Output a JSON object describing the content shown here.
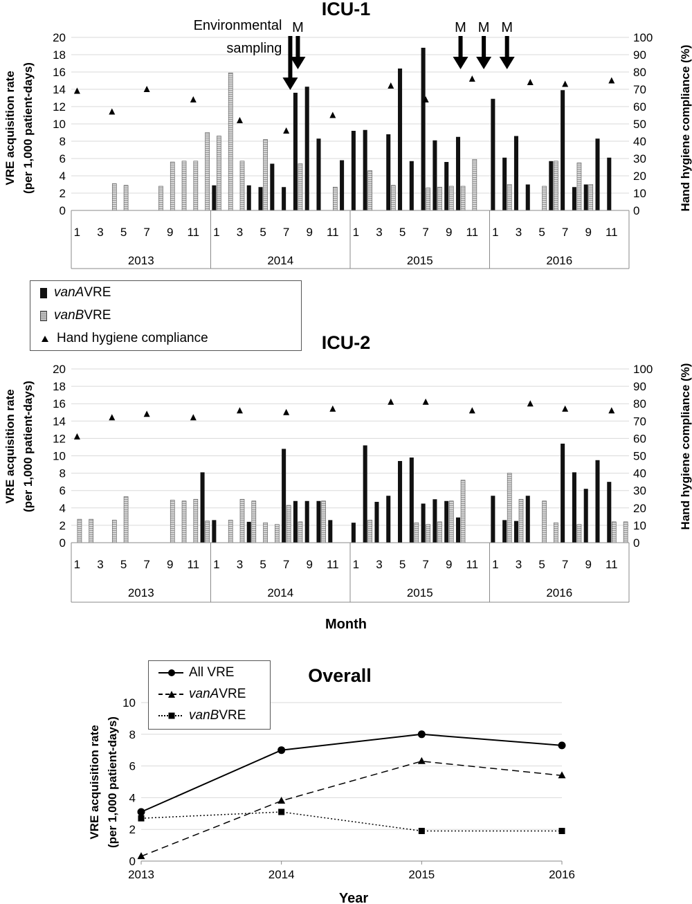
{
  "chart_data": [
    {
      "type": "bar",
      "title": "ICU-1",
      "ylabel_left": [
        "VRE acquisition rate",
        "(per 1,000 patient-days)"
      ],
      "ylabel_right": "Hand hygiene compliance (%)",
      "ylim_left": [
        0,
        20
      ],
      "yticks_left": [
        0,
        2,
        4,
        6,
        8,
        10,
        12,
        14,
        16,
        18,
        20
      ],
      "ylim_right": [
        0,
        100
      ],
      "yticks_right": [
        0,
        10,
        20,
        30,
        40,
        50,
        60,
        70,
        80,
        90,
        100
      ],
      "years": [
        "2013",
        "2014",
        "2015",
        "2016"
      ],
      "month_tick_labels": [
        "1",
        "3",
        "5",
        "7",
        "9",
        "11"
      ],
      "series": [
        {
          "name": "vanA VRE",
          "values": [
            0,
            0,
            0,
            0,
            0,
            0,
            0,
            0,
            0,
            0,
            0,
            0,
            2.9,
            0,
            0,
            2.9,
            2.7,
            5.4,
            2.7,
            13.6,
            14.3,
            8.3,
            0,
            5.8,
            9.2,
            9.3,
            0,
            8.8,
            16.4,
            5.7,
            18.8,
            8.1,
            5.6,
            8.5,
            0,
            0,
            12.9,
            6.1,
            8.6,
            3.0,
            0,
            5.7,
            13.9,
            2.7,
            3.0,
            8.3,
            6.1,
            0
          ]
        },
        {
          "name": "vanB VRE",
          "values": [
            0,
            0,
            0,
            3.1,
            2.9,
            0,
            0,
            2.8,
            5.6,
            5.7,
            5.7,
            9.0,
            8.6,
            15.9,
            5.7,
            0,
            8.2,
            0,
            0,
            5.4,
            0,
            0,
            2.7,
            0,
            0,
            4.6,
            0,
            2.9,
            0,
            0,
            2.6,
            2.7,
            2.8,
            2.8,
            5.9,
            0,
            0,
            3.0,
            0,
            0,
            2.8,
            5.7,
            0,
            5.5,
            3.0,
            0,
            0,
            0
          ]
        },
        {
          "name": "Hand hygiene compliance",
          "values": [
            69,
            null,
            null,
            57,
            null,
            null,
            70,
            null,
            null,
            null,
            64,
            null,
            null,
            null,
            52,
            null,
            null,
            null,
            46,
            null,
            null,
            null,
            55,
            null,
            null,
            null,
            null,
            72,
            null,
            null,
            64,
            null,
            null,
            null,
            76,
            null,
            null,
            null,
            null,
            74,
            null,
            null,
            73,
            null,
            null,
            null,
            75,
            null
          ]
        }
      ],
      "annotations": [
        {
          "text": "Environmental",
          "text2": "sampling",
          "month_index": 19
        },
        {
          "text": "M",
          "month_index": 19
        },
        {
          "text": "M",
          "month_index": 33
        },
        {
          "text": "M",
          "month_index": 35
        },
        {
          "text": "M",
          "month_index": 37
        }
      ]
    },
    {
      "type": "bar",
      "title": "ICU-2",
      "ylabel_left": [
        "VRE acquisition rate",
        "(per 1,000 patient-days)"
      ],
      "ylabel_right": "Hand hygiene compliance (%)",
      "xlabel": "Month",
      "ylim_left": [
        0,
        20
      ],
      "yticks_left": [
        0,
        2,
        4,
        6,
        8,
        10,
        12,
        14,
        16,
        18,
        20
      ],
      "ylim_right": [
        0,
        100
      ],
      "yticks_right": [
        0,
        10,
        20,
        30,
        40,
        50,
        60,
        70,
        80,
        90,
        100
      ],
      "years": [
        "2013",
        "2014",
        "2015",
        "2016"
      ],
      "month_tick_labels": [
        "1",
        "3",
        "5",
        "7",
        "9",
        "11"
      ],
      "series": [
        {
          "name": "vanA VRE",
          "values": [
            0,
            0,
            0,
            0,
            0,
            0,
            0,
            0,
            0,
            0,
            0,
            8.1,
            2.6,
            0,
            0,
            2.4,
            0,
            0,
            10.8,
            4.8,
            4.8,
            4.8,
            2.6,
            0,
            2.3,
            11.2,
            4.7,
            5.4,
            9.4,
            9.8,
            4.5,
            5.0,
            4.8,
            2.9,
            0,
            0,
            5.4,
            2.6,
            2.5,
            5.4,
            0,
            0,
            11.4,
            8.1,
            6.2,
            9.5,
            7.0,
            0
          ]
        },
        {
          "name": "vanB VRE",
          "values": [
            2.7,
            2.7,
            0,
            2.6,
            5.3,
            0,
            0,
            0,
            4.9,
            4.8,
            5.0,
            2.5,
            0,
            2.6,
            5.0,
            4.8,
            2.3,
            2.1,
            4.3,
            2.4,
            0,
            4.8,
            0,
            0,
            0,
            2.6,
            0,
            0,
            0,
            2.3,
            2.1,
            2.4,
            4.8,
            7.2,
            0,
            0,
            0,
            8.0,
            5.0,
            0,
            4.8,
            2.3,
            0,
            2.1,
            0,
            0,
            2.4,
            2.4
          ]
        },
        {
          "name": "Hand hygiene compliance",
          "values": [
            61,
            null,
            null,
            72,
            null,
            null,
            74,
            null,
            null,
            null,
            72,
            null,
            null,
            null,
            76,
            null,
            null,
            null,
            75,
            null,
            null,
            null,
            77,
            null,
            null,
            null,
            null,
            81,
            null,
            null,
            81,
            null,
            null,
            null,
            76,
            null,
            null,
            null,
            null,
            80,
            null,
            null,
            77,
            null,
            null,
            null,
            76,
            null
          ]
        }
      ]
    },
    {
      "type": "line",
      "title": "Overall",
      "xlabel": "Year",
      "ylabel": [
        "VRE acquisition rate",
        "(per 1,000 patient-days)"
      ],
      "x": [
        2013,
        2014,
        2015,
        2016
      ],
      "ylim": [
        0,
        10
      ],
      "yticks": [
        0,
        2,
        4,
        6,
        8,
        10
      ],
      "series": [
        {
          "name": "All VRE",
          "values": [
            3.1,
            7.0,
            8.0,
            7.3
          ]
        },
        {
          "name": "vanA VRE",
          "values": [
            0.3,
            3.8,
            6.3,
            5.4
          ]
        },
        {
          "name": "vanB VRE",
          "values": [
            2.7,
            3.1,
            1.9,
            1.9
          ]
        }
      ]
    }
  ],
  "legend": {
    "items": [
      {
        "italic": "vanA",
        "rest": " VRE"
      },
      {
        "italic": "vanB",
        "rest": " VRE"
      },
      {
        "italic": "",
        "rest": "Hand hygiene compliance"
      }
    ]
  },
  "overall_legend": {
    "items": [
      {
        "italic": "",
        "rest": "All VRE"
      },
      {
        "italic": "vanA",
        "rest": " VRE"
      },
      {
        "italic": "vanB",
        "rest": " VRE"
      }
    ]
  }
}
